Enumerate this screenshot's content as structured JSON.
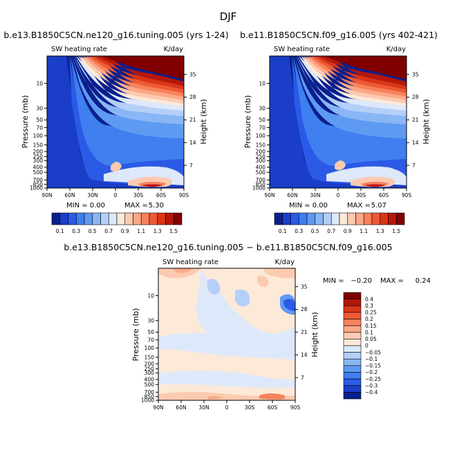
{
  "figure": {
    "title": "DJF",
    "difference_title": "b.e13.B1850C5CN.ne120_g16.tuning.005 − b.e11.B1850C5CN.f09_g16.005"
  },
  "chart_data": [
    {
      "type": "heatmap",
      "title": "b.e13.B1850C5CN.ne120_g16.tuning.005 (yrs 1-24)",
      "variable": "SW heating rate",
      "units": "K/day",
      "xlabel": "",
      "ylabel": "Pressure (mb)",
      "y2label": "Height (km)",
      "x_ticks": [
        "90N",
        "60N",
        "30N",
        "0",
        "30S",
        "60S",
        "90S"
      ],
      "y_ticks": [
        "10",
        "30",
        "50",
        "70",
        "100",
        "150",
        "200",
        "250",
        "300",
        "400",
        "500",
        "700",
        "850",
        "1000"
      ],
      "y2_ticks": [
        "35",
        "28",
        "21",
        "14",
        "7"
      ],
      "stats": {
        "min_label": "MIN =",
        "min": "0.00",
        "max_label": "MAX =",
        "max": "5.30"
      },
      "colorbar_levels": [
        "0.1",
        "0.3",
        "0.5",
        "0.7",
        "0.9",
        "1.1",
        "1.3",
        "1.5"
      ],
      "colorbar_colors": [
        "#0a1f8c",
        "#1a3ec8",
        "#2b5ae6",
        "#3f7ff0",
        "#5f9af2",
        "#8ab6f5",
        "#b4cff8",
        "#dde8fb",
        "#fde9d8",
        "#fccab0",
        "#fba886",
        "#f7825c",
        "#ee5a34",
        "#d93518",
        "#b5170a",
        "#800000"
      ]
    },
    {
      "type": "heatmap",
      "title": "b.e11.B1850C5CN.f09_g16.005 (yrs 402-421)",
      "variable": "SW heating rate",
      "units": "K/day",
      "xlabel": "",
      "ylabel": "Pressure (mb)",
      "y2label": "Height (km)",
      "x_ticks": [
        "90N",
        "60N",
        "30N",
        "0",
        "30S",
        "60S",
        "90S"
      ],
      "y_ticks": [
        "10",
        "30",
        "50",
        "70",
        "100",
        "150",
        "200",
        "250",
        "300",
        "400",
        "500",
        "700",
        "850",
        "1000"
      ],
      "y2_ticks": [
        "35",
        "28",
        "21",
        "14",
        "7"
      ],
      "stats": {
        "min_label": "MIN =",
        "min": "0.00",
        "max_label": "MAX =",
        "max": "5.07"
      },
      "colorbar_levels": [
        "0.1",
        "0.3",
        "0.5",
        "0.7",
        "0.9",
        "1.1",
        "1.3",
        "1.5"
      ],
      "colorbar_colors": [
        "#0a1f8c",
        "#1a3ec8",
        "#2b5ae6",
        "#3f7ff0",
        "#5f9af2",
        "#8ab6f5",
        "#b4cff8",
        "#dde8fb",
        "#fde9d8",
        "#fccab0",
        "#fba886",
        "#f7825c",
        "#ee5a34",
        "#d93518",
        "#b5170a",
        "#800000"
      ]
    },
    {
      "type": "heatmap",
      "title": "b.e13.B1850C5CN.ne120_g16.tuning.005 − b.e11.B1850C5CN.f09_g16.005",
      "variable": "SW heating rate",
      "units": "K/day",
      "xlabel": "",
      "ylabel": "Pressure (mb)",
      "y2label": "Height (km)",
      "x_ticks": [
        "90N",
        "60N",
        "30N",
        "0",
        "30S",
        "60S",
        "90S"
      ],
      "y_ticks": [
        "10",
        "30",
        "50",
        "70",
        "100",
        "150",
        "200",
        "250",
        "300",
        "400",
        "500",
        "700",
        "850",
        "1000"
      ],
      "y2_ticks": [
        "35",
        "28",
        "21",
        "14",
        "7"
      ],
      "stats": {
        "min_label": "MIN =",
        "min": "−0.20",
        "max_label": "MAX =",
        "max": "0.24"
      },
      "colorbar_levels": [
        "0.4",
        "0.3",
        "0.25",
        "0.2",
        "0.15",
        "0.1",
        "0.05",
        "0",
        "−0.05",
        "−0.1",
        "−0.15",
        "−0.2",
        "−0.25",
        "−0.3",
        "−0.4"
      ],
      "colorbar_colors": [
        "#800000",
        "#b5170a",
        "#d93518",
        "#ee5a34",
        "#f7825c",
        "#fba886",
        "#fccab0",
        "#fde9d8",
        "#dde8fb",
        "#b4cff8",
        "#8ab6f5",
        "#5f9af2",
        "#3f7ff0",
        "#2b5ae6",
        "#1a3ec8",
        "#0a1f8c"
      ]
    }
  ]
}
